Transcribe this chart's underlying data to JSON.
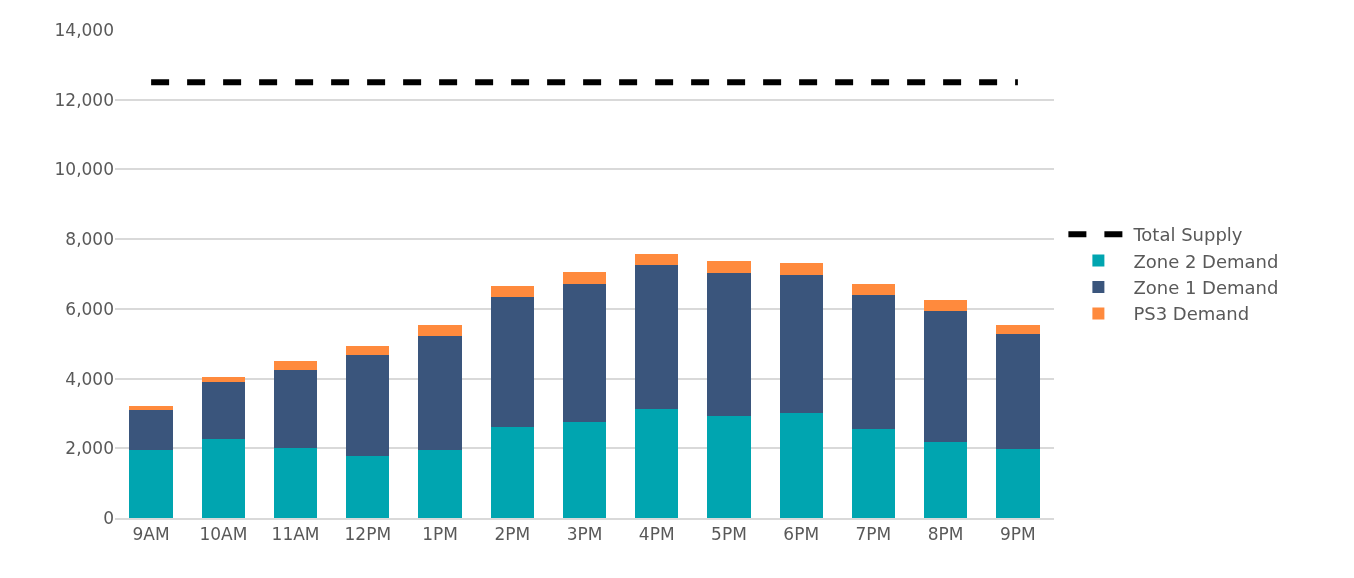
{
  "chart_data": {
    "type": "bar",
    "stacked": true,
    "categories": [
      "9AM",
      "10AM",
      "11AM",
      "12PM",
      "1PM",
      "2PM",
      "3PM",
      "4PM",
      "5PM",
      "6PM",
      "7PM",
      "8PM",
      "9PM"
    ],
    "series": [
      {
        "name": "Zone 2 Demand",
        "color": "#00a5b0",
        "values": [
          1940,
          2280,
          2010,
          1770,
          1940,
          2620,
          2750,
          3120,
          2940,
          3020,
          2550,
          2170,
          1990
        ]
      },
      {
        "name": "Zone 1 Demand",
        "color": "#3a557c",
        "values": [
          1160,
          1630,
          2240,
          2900,
          3280,
          3710,
          3970,
          4140,
          4100,
          3950,
          3860,
          3760,
          3280
        ]
      },
      {
        "name": "PS3 Demand",
        "color": "#ff8a3d",
        "values": [
          100,
          140,
          240,
          270,
          310,
          320,
          340,
          320,
          330,
          340,
          300,
          310,
          270
        ]
      },
      {
        "name": "Total Supply",
        "type": "line",
        "color": "#000000",
        "line_style": "dashed",
        "values": [
          12500,
          12500,
          12500,
          12500,
          12500,
          12500,
          12500,
          12500,
          12500,
          12500,
          12500,
          12500,
          12500
        ]
      }
    ],
    "ylim": [
      0,
      14000
    ],
    "yticks": [
      {
        "value": 0,
        "label": "0"
      },
      {
        "value": 2000,
        "label": "2,000"
      },
      {
        "value": 4000,
        "label": "4,000"
      },
      {
        "value": 6000,
        "label": "6,000"
      },
      {
        "value": 8000,
        "label": "8,000"
      },
      {
        "value": 10000,
        "label": "10,000"
      },
      {
        "value": 12000,
        "label": "12,000"
      },
      {
        "value": 14000,
        "label": "14,000"
      }
    ],
    "grid": "y",
    "legend": "right"
  }
}
